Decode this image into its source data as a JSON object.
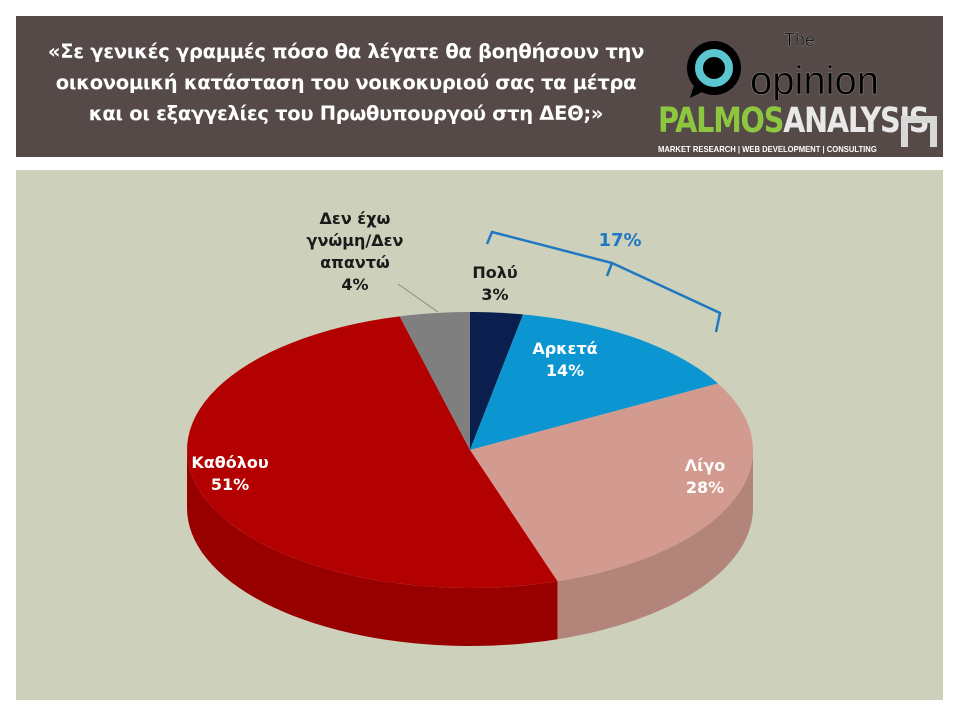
{
  "header": {
    "title": "«Σε γενικές γραμμές πόσο θα λέγατε θα βοηθήσουν την οικονομική κατάσταση του νοικοκυριού σας τα μέτρα και οι εξαγγελίες του Πρωθυπουργού στη ΔΕΘ;»",
    "logo_opinion": "The opinion",
    "logo_palmos_a": "PALMOS",
    "logo_palmos_b": "ANALYSIS",
    "logo_palmos_tagline": "MARKET RESEARCH | WEB DEVELOPMENT | CONSULTING"
  },
  "colors": {
    "header_bg": "#554a47",
    "plot_bg": "#cdd1bb",
    "bracket": "#1f78c1"
  },
  "chart_data": {
    "type": "pie",
    "style": "3d",
    "start": "top",
    "direction": "clockwise",
    "slices": [
      {
        "label": "Πολύ",
        "value": 3,
        "display": "3%",
        "color": "#0b1f4f"
      },
      {
        "label": "Αρκετά",
        "value": 14,
        "display": "14%",
        "color": "#0c96d1"
      },
      {
        "label": "Λίγο",
        "value": 28,
        "display": "28%",
        "color": "#d39b90"
      },
      {
        "label": "Καθόλου",
        "value": 51,
        "display": "51%",
        "color": "#b30000"
      },
      {
        "label": "Δεν έχω γνώμη/Δεν απαντώ",
        "value": 4,
        "display": "4%",
        "color": "#7f7f7f"
      }
    ],
    "annotation": {
      "text": "17%",
      "covers": [
        "Πολύ",
        "Αρκετά"
      ]
    }
  }
}
